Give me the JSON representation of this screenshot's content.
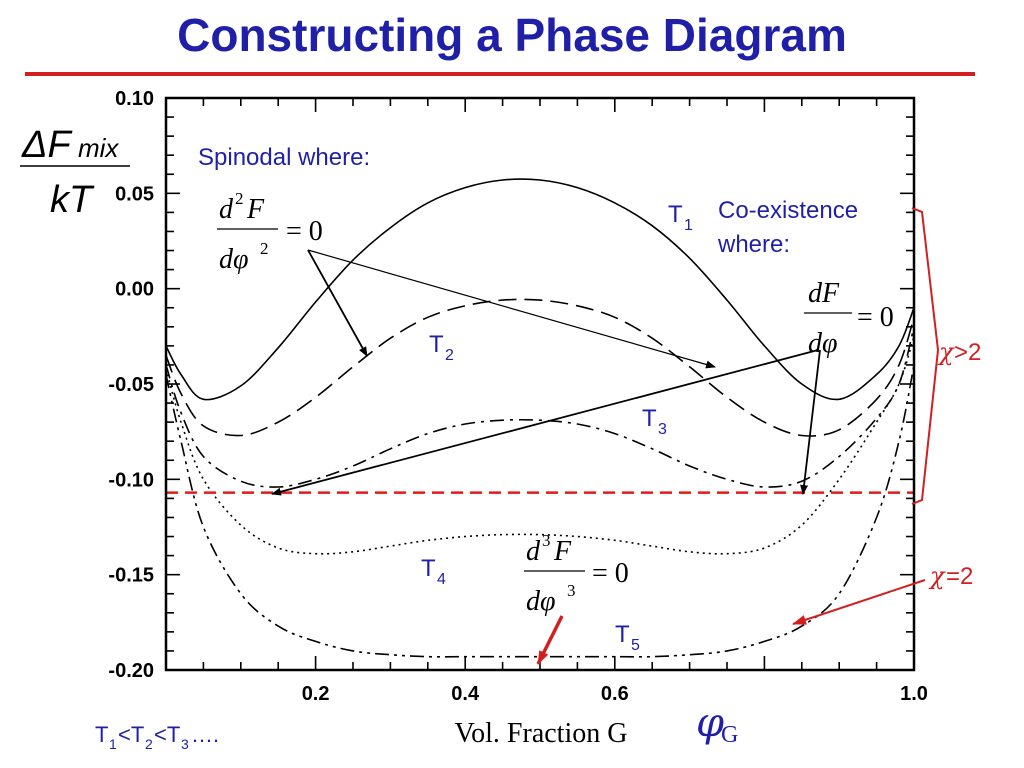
{
  "slide": {
    "title": "Constructing a Phase Diagram"
  },
  "y_label": {
    "numerator": "ΔF",
    "num_sub": "mix",
    "denominator": "kT"
  },
  "annotations": {
    "spinodal": "Spinodal where:",
    "coexistence_line1": "Co-existence",
    "coexistence_line2": "where:",
    "chi_gt": ">2",
    "chi_eq": "=2",
    "chi_symbol": "χ",
    "temp_order": "T",
    "order_1": "1",
    "order_lt1": "<T",
    "order_2": "2",
    "order_lt2": "<T",
    "order_3": "3",
    "order_dots": "….",
    "phi_symbol": "φ",
    "phi_sub": "G"
  },
  "equations": {
    "spinodal": {
      "num": "d",
      "num_sup": "2",
      "num_var": "F",
      "den": "dφ",
      "den_sup": "2",
      "rhs": "= 0"
    },
    "coexistence": {
      "num": "dF",
      "den": "dφ",
      "rhs": "= 0"
    },
    "critical": {
      "num": "d",
      "num_sup": "3",
      "num_var": "F",
      "den": "dφ",
      "den_sup": "3",
      "rhs": "= 0"
    }
  },
  "chart_data": {
    "type": "line",
    "xlabel": "Vol. Fraction G",
    "xlim": [
      0.0,
      1.0
    ],
    "ylim": [
      -0.2,
      0.1
    ],
    "x_ticks": [
      0.2,
      0.4,
      0.6,
      0.8,
      1.0
    ],
    "x_tick_labels": [
      "0.2",
      "0.4",
      "0.6",
      "",
      "1.0"
    ],
    "y_ticks": [
      0.1,
      0.05,
      0.0,
      -0.05,
      -0.1,
      -0.15,
      -0.2
    ],
    "y_tick_labels": [
      "0.10",
      "0.05",
      "0.00",
      "-0.05",
      "-0.10",
      "-0.15",
      "-0.20"
    ],
    "coexistence_level": -0.107,
    "series": [
      {
        "name": "T1",
        "label": "T",
        "sub": "1",
        "dash": "solid",
        "x": [
          0.0,
          0.02,
          0.05,
          0.1,
          0.15,
          0.2,
          0.25,
          0.3,
          0.35,
          0.4,
          0.45,
          0.5,
          0.55,
          0.6,
          0.65,
          0.7,
          0.75,
          0.8,
          0.85,
          0.9,
          0.95,
          0.98,
          1.0
        ],
        "y": [
          -0.03,
          -0.045,
          -0.058,
          -0.051,
          -0.031,
          -0.007,
          0.015,
          0.032,
          0.045,
          0.053,
          0.057,
          0.057,
          0.053,
          0.045,
          0.033,
          0.016,
          -0.006,
          -0.03,
          -0.05,
          -0.058,
          -0.045,
          -0.03,
          -0.01
        ]
      },
      {
        "name": "T2",
        "label": "T",
        "sub": "2",
        "dash": "dashed",
        "x": [
          0.0,
          0.02,
          0.05,
          0.1,
          0.15,
          0.2,
          0.25,
          0.3,
          0.35,
          0.4,
          0.45,
          0.5,
          0.55,
          0.6,
          0.65,
          0.7,
          0.75,
          0.8,
          0.85,
          0.9,
          0.95,
          0.98,
          1.0
        ],
        "y": [
          -0.035,
          -0.055,
          -0.072,
          -0.077,
          -0.07,
          -0.057,
          -0.041,
          -0.026,
          -0.015,
          -0.009,
          -0.006,
          -0.006,
          -0.009,
          -0.015,
          -0.026,
          -0.041,
          -0.057,
          -0.07,
          -0.077,
          -0.074,
          -0.058,
          -0.04,
          -0.015
        ]
      },
      {
        "name": "T3",
        "label": "T",
        "sub": "3",
        "dash": "dashdot",
        "x": [
          0.0,
          0.02,
          0.05,
          0.1,
          0.15,
          0.2,
          0.25,
          0.3,
          0.35,
          0.4,
          0.45,
          0.5,
          0.55,
          0.6,
          0.65,
          0.7,
          0.75,
          0.8,
          0.85,
          0.9,
          0.95,
          0.98,
          1.0
        ],
        "y": [
          -0.04,
          -0.065,
          -0.088,
          -0.101,
          -0.104,
          -0.1,
          -0.093,
          -0.084,
          -0.076,
          -0.071,
          -0.069,
          -0.069,
          -0.071,
          -0.076,
          -0.084,
          -0.093,
          -0.1,
          -0.104,
          -0.101,
          -0.088,
          -0.068,
          -0.05,
          -0.02
        ]
      },
      {
        "name": "T4",
        "label": "T",
        "sub": "4",
        "dash": "dotted",
        "x": [
          0.0,
          0.02,
          0.05,
          0.1,
          0.15,
          0.2,
          0.25,
          0.3,
          0.35,
          0.4,
          0.45,
          0.5,
          0.55,
          0.6,
          0.65,
          0.7,
          0.75,
          0.8,
          0.85,
          0.9,
          0.95,
          0.98,
          1.0
        ],
        "y": [
          -0.042,
          -0.07,
          -0.1,
          -0.124,
          -0.136,
          -0.139,
          -0.138,
          -0.135,
          -0.132,
          -0.13,
          -0.129,
          -0.129,
          -0.13,
          -0.132,
          -0.135,
          -0.138,
          -0.139,
          -0.136,
          -0.124,
          -0.1,
          -0.07,
          -0.05,
          -0.025
        ]
      },
      {
        "name": "T5",
        "label": "T",
        "sub": "5",
        "dash": "dashdotdot",
        "x": [
          0.0,
          0.02,
          0.05,
          0.1,
          0.15,
          0.2,
          0.25,
          0.3,
          0.35,
          0.4,
          0.45,
          0.5,
          0.55,
          0.6,
          0.65,
          0.7,
          0.75,
          0.8,
          0.85,
          0.9,
          0.95,
          0.98,
          1.0
        ],
        "y": [
          -0.045,
          -0.08,
          -0.125,
          -0.16,
          -0.177,
          -0.185,
          -0.19,
          -0.192,
          -0.193,
          -0.193,
          -0.193,
          -0.193,
          -0.193,
          -0.193,
          -0.193,
          -0.192,
          -0.19,
          -0.185,
          -0.177,
          -0.16,
          -0.12,
          -0.08,
          -0.04
        ]
      }
    ]
  }
}
